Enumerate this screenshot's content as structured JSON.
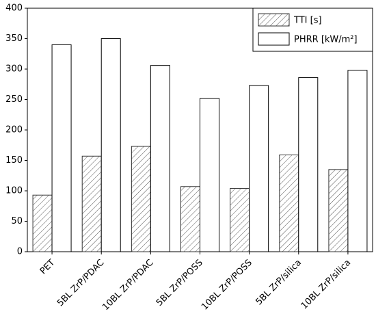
{
  "chart_data": {
    "type": "bar",
    "categories": [
      "PET",
      "5BL ZrP/PDAC",
      "10BL ZrP/PDAC",
      "5BL ZrP/POSS",
      "10BL ZrP/POSS",
      "5BL ZrP/silica",
      "10BL ZrP/silica"
    ],
    "series": [
      {
        "name": "TTI [s]",
        "color": "#333333",
        "pattern": "hatch",
        "values": [
          93,
          157,
          173,
          107,
          104,
          159,
          135
        ]
      },
      {
        "name": "PHRR [kW/m²]",
        "color": "#000000",
        "pattern": "none",
        "values": [
          340,
          350,
          306,
          252,
          273,
          286,
          298
        ]
      }
    ],
    "ylim": [
      0,
      400
    ],
    "yticks": [
      0,
      50,
      100,
      150,
      200,
      250,
      300,
      350,
      400
    ],
    "legend": "top-right",
    "grid": false
  }
}
